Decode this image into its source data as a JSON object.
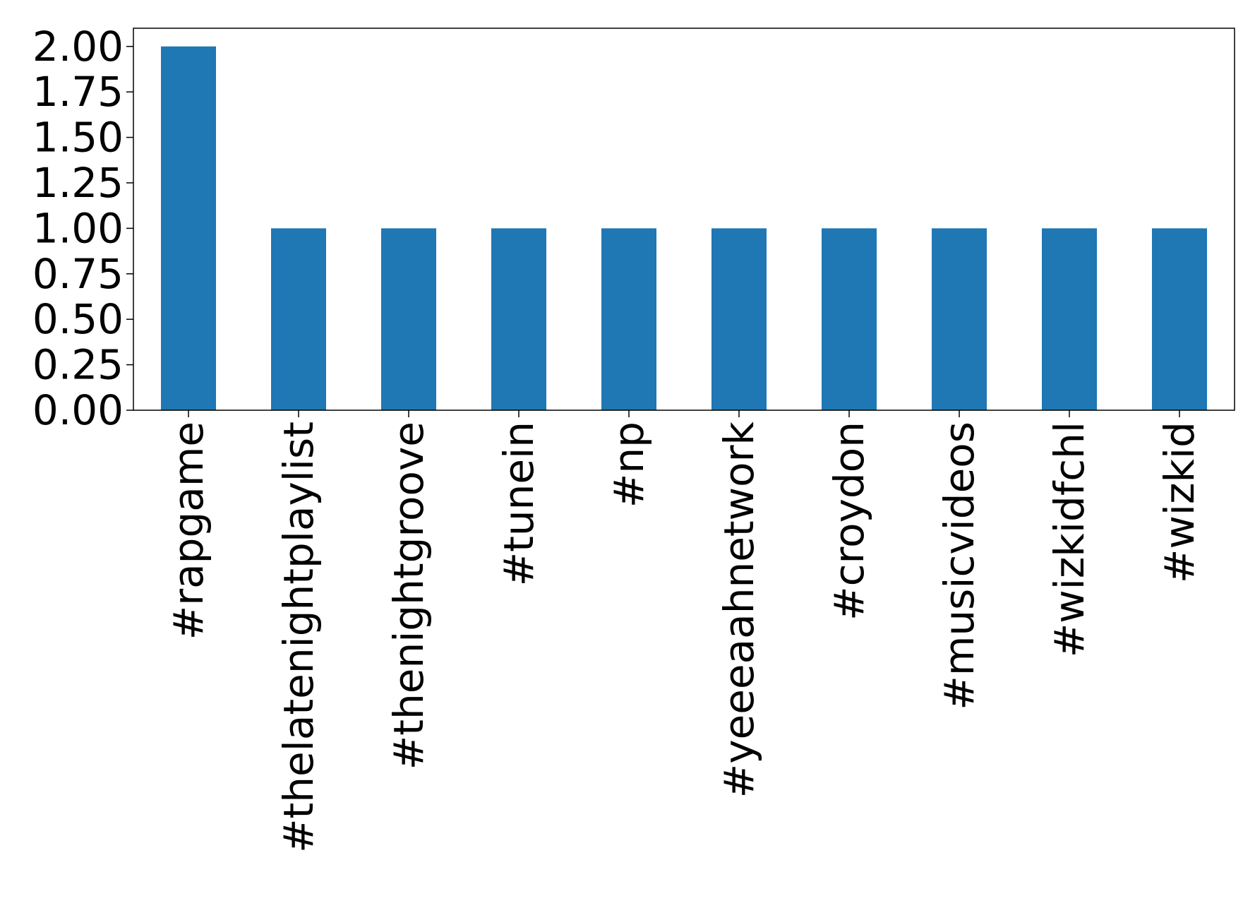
{
  "chart_data": {
    "type": "bar",
    "categories": [
      "#rapgame",
      "#thelatenightplaylist",
      "#thenightgroove",
      "#tunein",
      "#np",
      "#yeeeaahnetwork",
      "#croydon",
      "#musicvideos",
      "#wizkidfchl",
      "#wizkid"
    ],
    "values": [
      2,
      1,
      1,
      1,
      1,
      1,
      1,
      1,
      1,
      1
    ],
    "color": "#1f77b4",
    "ylim": [
      0,
      2.1
    ],
    "yticks": [
      {
        "value": 0,
        "label": "0.00"
      },
      {
        "value": 0.25,
        "label": "0.25"
      },
      {
        "value": 0.5,
        "label": "0.50"
      },
      {
        "value": 0.75,
        "label": "0.75"
      },
      {
        "value": 1,
        "label": "1.00"
      },
      {
        "value": 1.25,
        "label": "1.25"
      },
      {
        "value": 1.5,
        "label": "1.50"
      },
      {
        "value": 1.75,
        "label": "1.75"
      },
      {
        "value": 2,
        "label": "2.00"
      }
    ],
    "grid": false
  }
}
